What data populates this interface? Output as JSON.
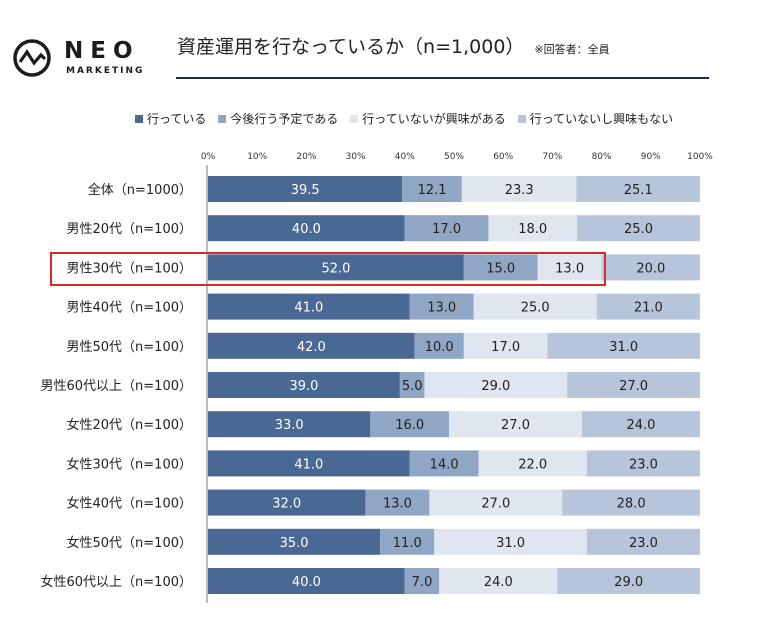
{
  "logo": {
    "word": "NEO",
    "sub": "MARKETING"
  },
  "header": {
    "title": "資産運用を行なっているか（n=1,000）",
    "note": "※回答者：全員"
  },
  "colors": {
    "series": [
      "#4a6894",
      "#8fa7c5",
      "#dfe6f0",
      "#b6c5da"
    ],
    "label_dark_bg": "#ffffff",
    "label_light_bg": "#222222",
    "highlight": "#d62a2a"
  },
  "chart_data": {
    "type": "bar",
    "orientation": "horizontal",
    "stacked": true,
    "categories": [
      "全体（n=1000）",
      "男性20代（n=100）",
      "男性30代（n=100）",
      "男性40代（n=100）",
      "男性50代（n=100）",
      "男性60代以上（n=100）",
      "女性20代（n=100）",
      "女性30代（n=100）",
      "女性40代（n=100）",
      "女性50代（n=100）",
      "女性60代以上（n=100）"
    ],
    "series": [
      {
        "name": "行っている",
        "values": [
          39.5,
          40.0,
          52.0,
          41.0,
          42.0,
          39.0,
          33.0,
          41.0,
          32.0,
          35.0,
          40.0
        ],
        "labels": [
          "39.5",
          "40.0",
          "52.0",
          "41.0",
          "42.0",
          "39.0",
          "33.0",
          "41.0",
          "32.0",
          "35.0",
          "40.0"
        ]
      },
      {
        "name": "今後行う予定である",
        "values": [
          12.1,
          17.0,
          15.0,
          13.0,
          10.0,
          5.0,
          16.0,
          14.0,
          13.0,
          11.0,
          7.0
        ],
        "labels": [
          "12.1",
          "17.0",
          "15.0",
          "13.0",
          "10.0",
          "5.0",
          "16.0",
          "14.0",
          "13.0",
          "11.0",
          "7.0"
        ]
      },
      {
        "name": "行っていないが興味がある",
        "values": [
          23.3,
          18.0,
          13.0,
          25.0,
          17.0,
          29.0,
          27.0,
          22.0,
          27.0,
          31.0,
          24.0
        ],
        "labels": [
          "23.3",
          "18.0",
          "13.0",
          "25.0",
          "17.0",
          "29.0",
          "27.0",
          "22.0",
          "27.0",
          "31.0",
          "24.0"
        ]
      },
      {
        "name": "行っていないし興味もない",
        "values": [
          25.1,
          25.0,
          20.0,
          21.0,
          31.0,
          27.0,
          24.0,
          23.0,
          28.0,
          23.0,
          29.0
        ],
        "labels": [
          "25.1",
          "25.0",
          "20.0",
          "21.0",
          "31.0",
          "27.0",
          "24.0",
          "23.0",
          "28.0",
          "23.0",
          "29.0"
        ]
      }
    ],
    "xlim": [
      0,
      100
    ],
    "xticks": [
      "0%",
      "10%",
      "20%",
      "30%",
      "40%",
      "50%",
      "60%",
      "70%",
      "80%",
      "90%",
      "100%"
    ],
    "legend_position": "top",
    "highlighted_category": "男性30代（n=100）"
  }
}
